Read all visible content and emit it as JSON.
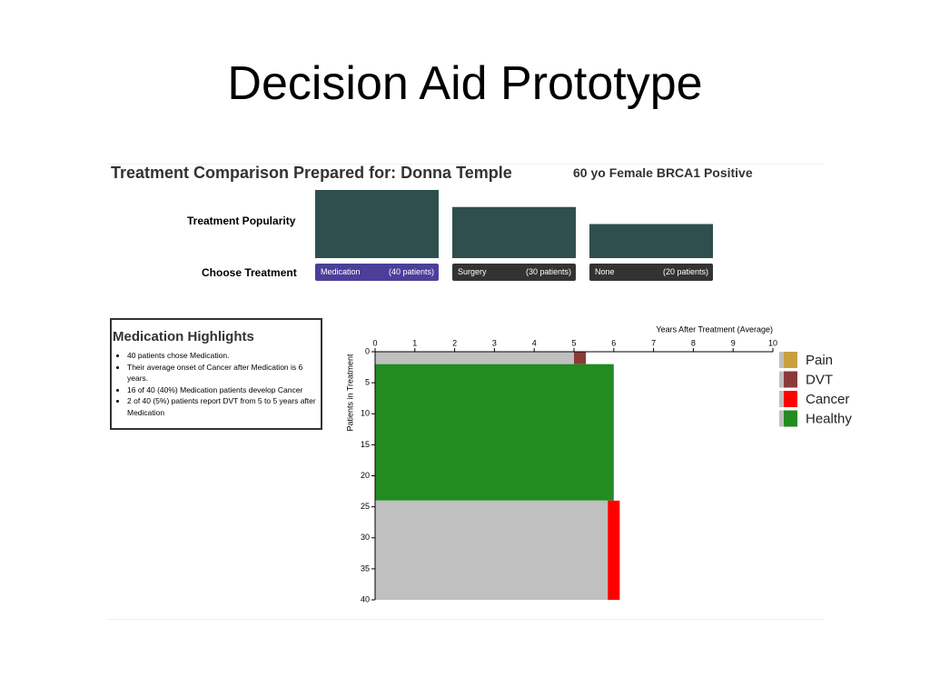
{
  "slide_title": "Decision Aid Prototype",
  "header": {
    "title": "Treatment Comparison Prepared for: Donna Temple",
    "patient": "60 yo Female BRCA1 Positive"
  },
  "popularity_label": "Treatment Popularity",
  "choose_label": "Choose Treatment",
  "treatments": [
    {
      "name": "Medication",
      "patients": 40,
      "label": "(40 patients)"
    },
    {
      "name": "Surgery",
      "patients": 30,
      "label": "(30 patients)"
    },
    {
      "name": "None",
      "patients": 20,
      "label": "(20 patients)"
    }
  ],
  "highlights": {
    "title": "Medication Highlights",
    "items": [
      "40 patients chose Medication.",
      "Their average onset of Cancer after Medication is 6 years.",
      "16 of 40 (40%) Medication patients develop Cancer",
      "2 of 40 (5%) patients report DVT from 5 to 5 years after Medication"
    ]
  },
  "chart_data": {
    "type": "timeline",
    "x_label": "Years After Treatment (Average)",
    "y_label": "Patients in Treatment",
    "xlim": [
      0,
      10
    ],
    "xticks": [
      0,
      1,
      2,
      3,
      4,
      5,
      6,
      7,
      8,
      9,
      10
    ],
    "ylim": [
      0,
      40
    ],
    "yticks": [
      0,
      5,
      10,
      15,
      20,
      25,
      30,
      35,
      40
    ],
    "segments": [
      {
        "x": [
          0,
          5
        ],
        "y": [
          0,
          2
        ],
        "color": "#c0c0c0"
      },
      {
        "x": [
          5,
          5.3
        ],
        "y": [
          0,
          2
        ],
        "color": "#8b3a3a"
      },
      {
        "x": [
          0,
          6
        ],
        "y": [
          2,
          24
        ],
        "color": "#228b22"
      },
      {
        "x": [
          0,
          5.85
        ],
        "y": [
          24,
          40
        ],
        "color": "#c0c0c0"
      },
      {
        "x": [
          5.85,
          6.15
        ],
        "y": [
          24,
          40
        ],
        "color": "#ff0000"
      }
    ],
    "legend": [
      {
        "name": "Pain",
        "color": "#c8a040"
      },
      {
        "name": "DVT",
        "color": "#8b3a3a"
      },
      {
        "name": "Cancer",
        "color": "#ff0000"
      },
      {
        "name": "Healthy",
        "color": "#228b22"
      }
    ]
  }
}
